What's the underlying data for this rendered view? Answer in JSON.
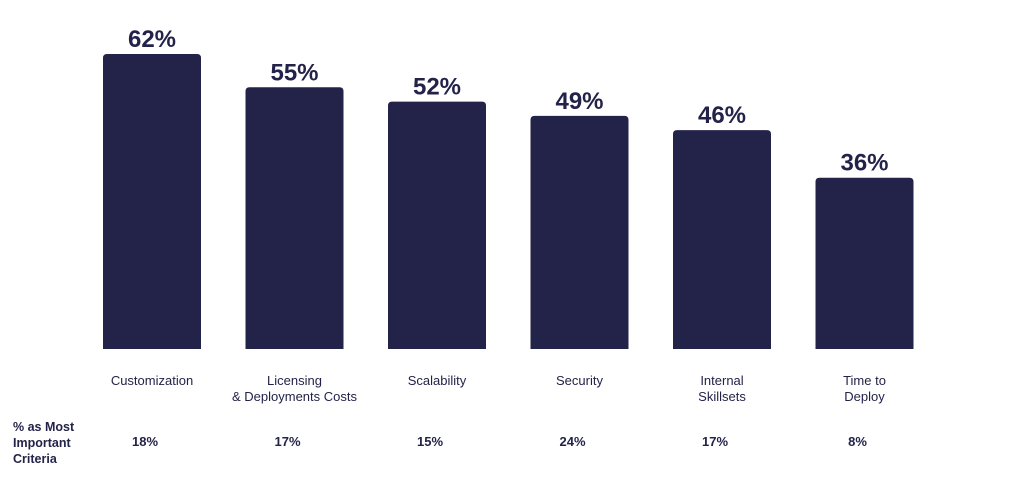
{
  "chart_data": {
    "type": "bar",
    "categories": [
      [
        "Customization"
      ],
      [
        "Licensing",
        "& Deployments Costs"
      ],
      [
        "Scalability"
      ],
      [
        "Security"
      ],
      [
        "Internal",
        "Skillsets"
      ],
      [
        "Time to",
        "Deploy"
      ]
    ],
    "values": [
      62,
      55,
      52,
      49,
      46,
      36
    ],
    "value_labels": [
      "62%",
      "55%",
      "52%",
      "49%",
      "46%",
      "36%"
    ],
    "ylim": [
      0,
      62
    ],
    "bar_color": "#23234a",
    "secondary_row": {
      "label_lines": [
        "% as Most",
        "Important",
        "Criteria"
      ],
      "values": [
        "18%",
        "17%",
        "15%",
        "24%",
        "17%",
        "8%"
      ]
    }
  }
}
